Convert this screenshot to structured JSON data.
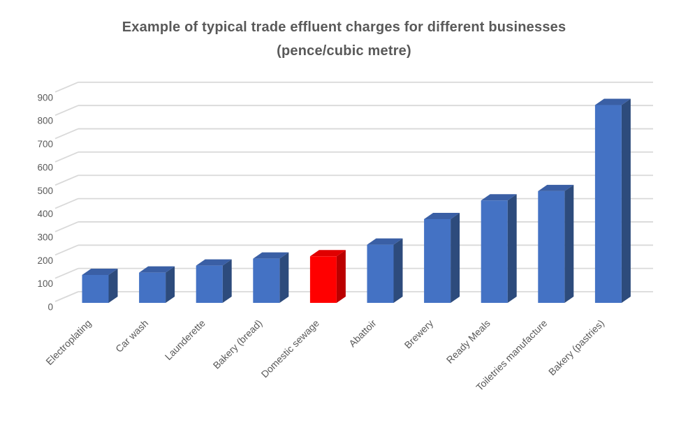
{
  "page": {
    "background": "#ffffff"
  },
  "title": {
    "line1": "Example of typical trade effluent charges for different businesses",
    "line2": "(pence/cubic metre)"
  },
  "colors": {
    "background": "#ffffff",
    "text": "#595959",
    "gridline": "#d9d9d9",
    "blue_bar": {
      "front": "#4472c4",
      "top": "#3a5fa5",
      "side": "#2d4b7c"
    },
    "red_bar": {
      "front": "#ff0000",
      "top": "#e00000",
      "side": "#bb0000"
    }
  },
  "chart_data": {
    "type": "bar",
    "style": "3d-clustered-column",
    "title": "Example of typical trade effluent charges for different businesses",
    "subtitle": "(pence/cubic metre)",
    "unit": "pence/cubic metre",
    "xlabel": "",
    "ylabel": "",
    "ylim": [
      0,
      900
    ],
    "yticks": [
      0,
      100,
      200,
      300,
      400,
      500,
      600,
      700,
      800,
      900
    ],
    "grid": true,
    "legend": false,
    "categories": [
      "Electroplating",
      "Car wash",
      "Launderette",
      "Bakery (bread)",
      "Domestic sewage",
      "Abattoir",
      "Brewery",
      "Ready Meals",
      "Toiletries manufacture",
      "Bakery (pastries)"
    ],
    "values": [
      120,
      130,
      160,
      190,
      200,
      250,
      360,
      440,
      480,
      850
    ],
    "highlight_category": "Domestic sewage",
    "highlight_index": 4,
    "series_color": "#4472c4",
    "highlight_color": "#ff0000"
  }
}
